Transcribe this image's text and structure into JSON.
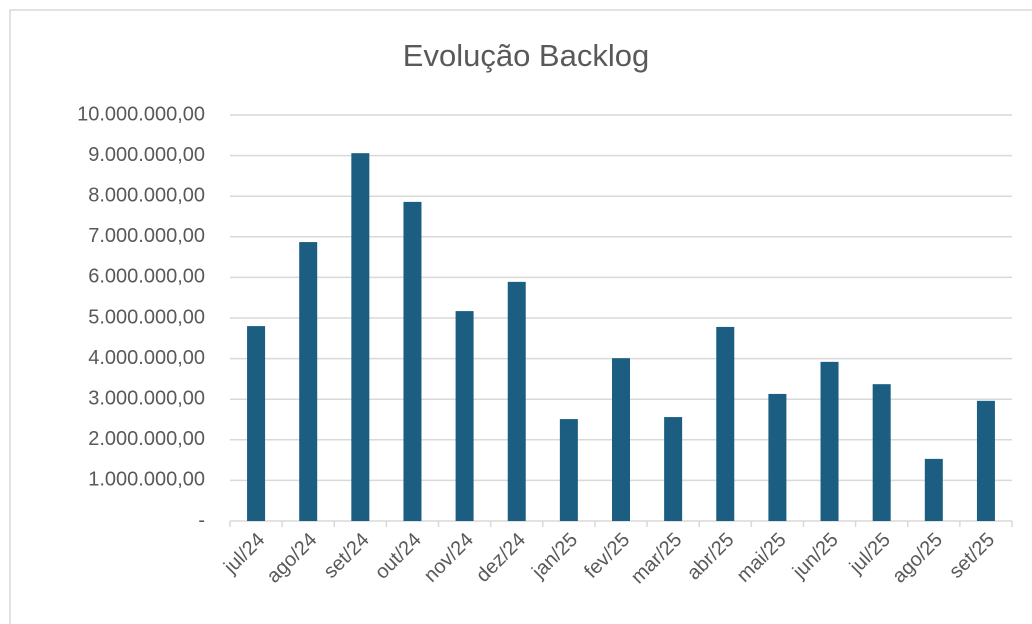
{
  "chart_data": {
    "type": "bar",
    "title": "Evolução Backlog",
    "categories": [
      "jul/24",
      "ago/24",
      "set/24",
      "out/24",
      "nov/24",
      "dez/24",
      "jan/25",
      "fev/25",
      "mar/25",
      "abr/25",
      "mai/25",
      "jun/25",
      "jul/25",
      "ago/25",
      "set/25"
    ],
    "values": [
      4800000,
      6870000,
      9060000,
      7860000,
      5170000,
      5890000,
      2510000,
      4010000,
      2560000,
      4780000,
      3130000,
      3920000,
      3370000,
      1530000,
      2960000
    ],
    "color": "#1b5e82",
    "ylim": [
      0,
      10000000
    ],
    "yticks": [
      {
        "value": 0,
        "label": "-"
      },
      {
        "value": 1000000,
        "label": "1.000.000,00"
      },
      {
        "value": 2000000,
        "label": "2.000.000,00"
      },
      {
        "value": 3000000,
        "label": "3.000.000,00"
      },
      {
        "value": 4000000,
        "label": "4.000.000,00"
      },
      {
        "value": 5000000,
        "label": "5.000.000,00"
      },
      {
        "value": 6000000,
        "label": "6.000.000,00"
      },
      {
        "value": 7000000,
        "label": "7.000.000,00"
      },
      {
        "value": 8000000,
        "label": "8.000.000,00"
      },
      {
        "value": 9000000,
        "label": "9.000.000,00"
      },
      {
        "value": 10000000,
        "label": "10.000.000,00"
      }
    ],
    "grid": true
  }
}
